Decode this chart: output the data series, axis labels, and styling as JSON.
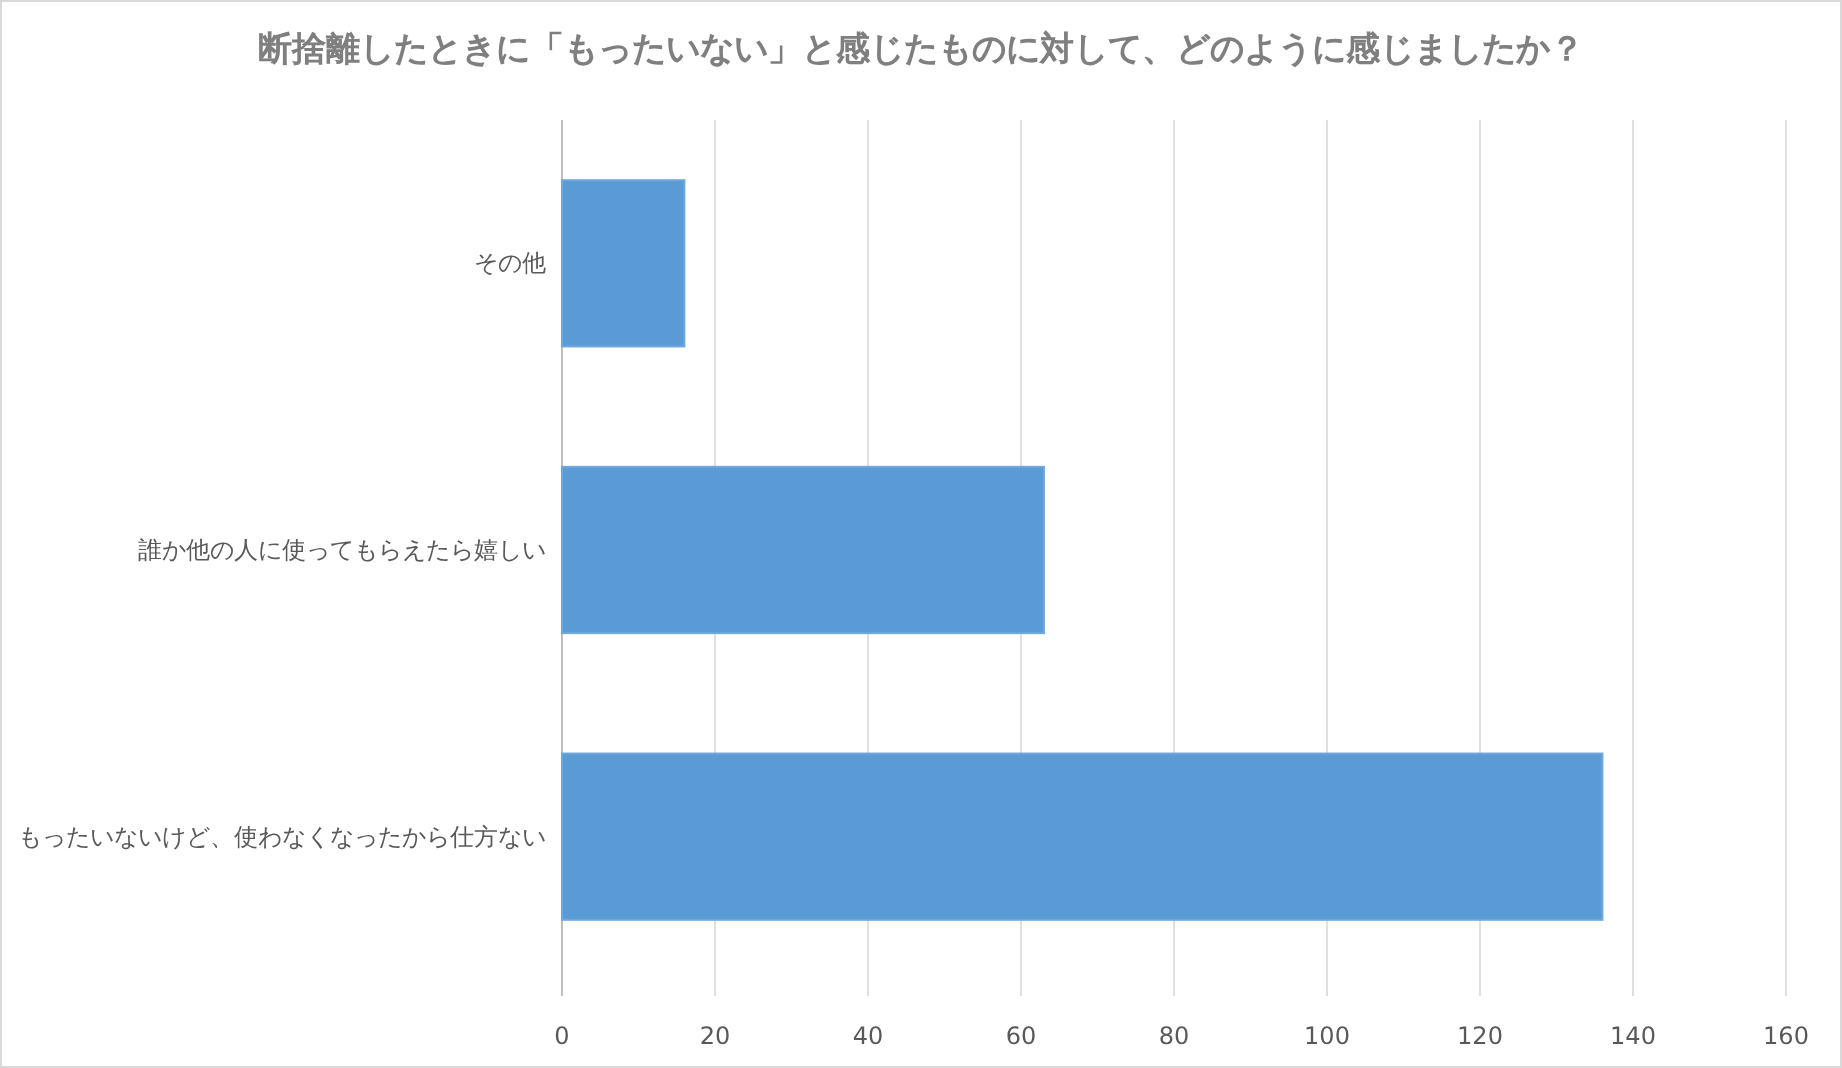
{
  "chart_data": {
    "type": "bar",
    "orientation": "horizontal",
    "title": "断捨離したときに「もったいない」と感じたものに対して、どのように感じましたか？",
    "categories": [
      "その他",
      "誰か他の人に使ってもらえたら嬉しい",
      "もったいないけど、使わなくなったから仕方ない"
    ],
    "series": [
      {
        "color": "#5b9bd5",
        "values": [
          16,
          63,
          136
        ]
      }
    ],
    "xlim": [
      0,
      160
    ],
    "xticks": [
      0,
      20,
      40,
      60,
      80,
      100,
      120,
      140,
      160
    ],
    "grid": "x"
  }
}
